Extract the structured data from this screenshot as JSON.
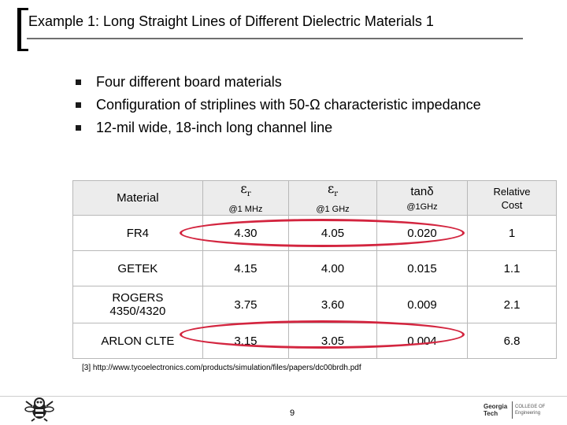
{
  "title": "Example 1: Long Straight Lines of Different Dielectric Materials 1",
  "bullets": [
    "Four different board materials",
    "Configuration of striplines with 50-Ω characteristic impedance",
    "12-mil wide, 18-inch long channel line"
  ],
  "table": {
    "header": {
      "material": "Material",
      "er_symbol": "ε",
      "er_sub": "r",
      "er1_freq": "@1 MHz",
      "er2_freq": "@1 GHz",
      "tand_symbol": "tanδ",
      "tand_freq": "@1GHz",
      "cost_line1": "Relative",
      "cost_line2": "Cost"
    },
    "rows": [
      {
        "material": "FR4",
        "er_1mhz": "4.30",
        "er_1ghz": "4.05",
        "tand": "0.020",
        "cost": "1"
      },
      {
        "material": "GETEK",
        "er_1mhz": "4.15",
        "er_1ghz": "4.00",
        "tand": "0.015",
        "cost": "1.1"
      },
      {
        "material_line1": "ROGERS",
        "material_line2": "4350/4320",
        "er_1mhz": "3.75",
        "er_1ghz": "3.60",
        "tand": "0.009",
        "cost": "2.1"
      },
      {
        "material": "ARLON CLTE",
        "er_1mhz": "3.15",
        "er_1ghz": "3.05",
        "tand": "0.004",
        "cost": "6.8"
      }
    ]
  },
  "footnote": "[3] http://www.tycoelectronics.com/products/simulation/files/papers/dc00brdh.pdf",
  "page_number": "9",
  "logo": {
    "line1": "Georgia",
    "line2": "Tech",
    "right_line1": "COLLEGE OF",
    "right_line2": "Engineering"
  },
  "colors": {
    "highlight": "#d3253f",
    "header_bg": "#ececec"
  }
}
